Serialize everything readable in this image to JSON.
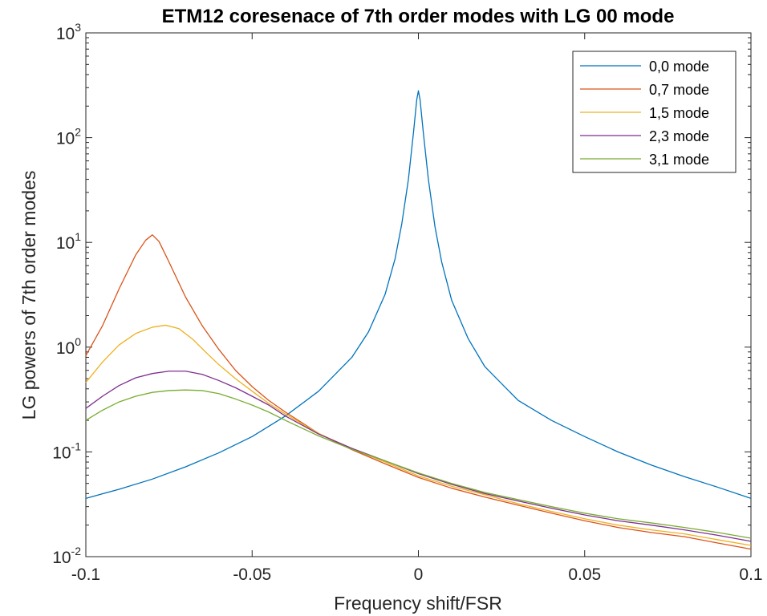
{
  "chart_data": {
    "type": "line",
    "title": "ETM12 coresenace of 7th order modes with LG 00 mode",
    "xlabel": "Frequency shift/FSR",
    "ylabel": "LG powers of 7th order modes",
    "xlim": [
      -0.1,
      0.1
    ],
    "ylim": [
      0.01,
      1000
    ],
    "yscale": "log",
    "grid": false,
    "legend_position": "top-right",
    "x_ticks": [
      -0.1,
      -0.05,
      0,
      0.05,
      0.1
    ],
    "x_tick_labels": [
      "-0.1",
      "-0.05",
      "0",
      "0.05",
      "0.1"
    ],
    "y_ticks": [
      0.01,
      0.1,
      1,
      10,
      100,
      1000
    ],
    "y_tick_labels": [
      {
        "base": "10",
        "exp": "-2"
      },
      {
        "base": "10",
        "exp": "-1"
      },
      {
        "base": "10",
        "exp": "0"
      },
      {
        "base": "10",
        "exp": "1"
      },
      {
        "base": "10",
        "exp": "2"
      },
      {
        "base": "10",
        "exp": "3"
      }
    ],
    "series": [
      {
        "name": "0,0 mode",
        "color": "#0072BD",
        "points": [
          [
            -0.1,
            0.036
          ],
          [
            -0.09,
            0.044
          ],
          [
            -0.08,
            0.055
          ],
          [
            -0.07,
            0.072
          ],
          [
            -0.06,
            0.098
          ],
          [
            -0.05,
            0.14
          ],
          [
            -0.04,
            0.22
          ],
          [
            -0.03,
            0.38
          ],
          [
            -0.02,
            0.8
          ],
          [
            -0.015,
            1.4
          ],
          [
            -0.01,
            3.2
          ],
          [
            -0.007,
            7.0
          ],
          [
            -0.005,
            15
          ],
          [
            -0.003,
            40
          ],
          [
            -0.0015,
            110
          ],
          [
            -0.0005,
            230
          ],
          [
            0,
            280
          ],
          [
            0.0005,
            230
          ],
          [
            0.0015,
            110
          ],
          [
            0.003,
            40
          ],
          [
            0.005,
            14
          ],
          [
            0.007,
            6.5
          ],
          [
            0.01,
            2.8
          ],
          [
            0.015,
            1.2
          ],
          [
            0.02,
            0.65
          ],
          [
            0.03,
            0.31
          ],
          [
            0.04,
            0.2
          ],
          [
            0.05,
            0.14
          ],
          [
            0.06,
            0.1
          ],
          [
            0.07,
            0.075
          ],
          [
            0.08,
            0.058
          ],
          [
            0.09,
            0.046
          ],
          [
            0.1,
            0.036
          ]
        ]
      },
      {
        "name": "0,7 mode",
        "color": "#D95319",
        "points": [
          [
            -0.1,
            0.83
          ],
          [
            -0.095,
            1.6
          ],
          [
            -0.09,
            3.6
          ],
          [
            -0.085,
            7.6
          ],
          [
            -0.082,
            10.5
          ],
          [
            -0.08,
            11.8
          ],
          [
            -0.078,
            10.2
          ],
          [
            -0.075,
            6.5
          ],
          [
            -0.07,
            3.0
          ],
          [
            -0.065,
            1.6
          ],
          [
            -0.06,
            0.95
          ],
          [
            -0.055,
            0.6
          ],
          [
            -0.05,
            0.42
          ],
          [
            -0.045,
            0.31
          ],
          [
            -0.04,
            0.24
          ],
          [
            -0.03,
            0.15
          ],
          [
            -0.02,
            0.105
          ],
          [
            -0.01,
            0.077
          ],
          [
            0,
            0.057
          ],
          [
            0.01,
            0.045
          ],
          [
            0.02,
            0.037
          ],
          [
            0.03,
            0.031
          ],
          [
            0.04,
            0.026
          ],
          [
            0.05,
            0.022
          ],
          [
            0.06,
            0.019
          ],
          [
            0.07,
            0.017
          ],
          [
            0.08,
            0.0155
          ],
          [
            0.09,
            0.0135
          ],
          [
            0.1,
            0.0118
          ]
        ]
      },
      {
        "name": "1,5 mode",
        "color": "#EDB120",
        "points": [
          [
            -0.1,
            0.46
          ],
          [
            -0.095,
            0.72
          ],
          [
            -0.09,
            1.05
          ],
          [
            -0.085,
            1.35
          ],
          [
            -0.08,
            1.55
          ],
          [
            -0.076,
            1.62
          ],
          [
            -0.072,
            1.5
          ],
          [
            -0.068,
            1.2
          ],
          [
            -0.064,
            0.9
          ],
          [
            -0.06,
            0.68
          ],
          [
            -0.055,
            0.5
          ],
          [
            -0.05,
            0.38
          ],
          [
            -0.045,
            0.29
          ],
          [
            -0.04,
            0.23
          ],
          [
            -0.03,
            0.15
          ],
          [
            -0.02,
            0.107
          ],
          [
            -0.01,
            0.08
          ],
          [
            0,
            0.059
          ],
          [
            0.01,
            0.047
          ],
          [
            0.02,
            0.039
          ],
          [
            0.03,
            0.032
          ],
          [
            0.04,
            0.027
          ],
          [
            0.05,
            0.023
          ],
          [
            0.06,
            0.02
          ],
          [
            0.07,
            0.018
          ],
          [
            0.08,
            0.0165
          ],
          [
            0.09,
            0.0145
          ],
          [
            0.1,
            0.0128
          ]
        ]
      },
      {
        "name": "2,3 mode",
        "color": "#7E2F8E",
        "points": [
          [
            -0.1,
            0.26
          ],
          [
            -0.095,
            0.34
          ],
          [
            -0.09,
            0.43
          ],
          [
            -0.085,
            0.51
          ],
          [
            -0.08,
            0.56
          ],
          [
            -0.075,
            0.59
          ],
          [
            -0.07,
            0.59
          ],
          [
            -0.065,
            0.55
          ],
          [
            -0.06,
            0.48
          ],
          [
            -0.055,
            0.41
          ],
          [
            -0.05,
            0.34
          ],
          [
            -0.045,
            0.28
          ],
          [
            -0.04,
            0.22
          ],
          [
            -0.03,
            0.148
          ],
          [
            -0.02,
            0.108
          ],
          [
            -0.01,
            0.082
          ],
          [
            0,
            0.062
          ],
          [
            0.01,
            0.049
          ],
          [
            0.02,
            0.04
          ],
          [
            0.03,
            0.034
          ],
          [
            0.04,
            0.029
          ],
          [
            0.05,
            0.025
          ],
          [
            0.06,
            0.022
          ],
          [
            0.07,
            0.02
          ],
          [
            0.08,
            0.018
          ],
          [
            0.09,
            0.016
          ],
          [
            0.1,
            0.014
          ]
        ]
      },
      {
        "name": "3,1 mode",
        "color": "#77AC30",
        "points": [
          [
            -0.1,
            0.2
          ],
          [
            -0.095,
            0.25
          ],
          [
            -0.09,
            0.3
          ],
          [
            -0.085,
            0.34
          ],
          [
            -0.08,
            0.37
          ],
          [
            -0.075,
            0.385
          ],
          [
            -0.07,
            0.39
          ],
          [
            -0.065,
            0.385
          ],
          [
            -0.06,
            0.36
          ],
          [
            -0.055,
            0.32
          ],
          [
            -0.05,
            0.28
          ],
          [
            -0.045,
            0.24
          ],
          [
            -0.04,
            0.2
          ],
          [
            -0.03,
            0.142
          ],
          [
            -0.02,
            0.106
          ],
          [
            -0.01,
            0.082
          ],
          [
            0,
            0.063
          ],
          [
            0.01,
            0.05
          ],
          [
            0.02,
            0.041
          ],
          [
            0.03,
            0.035
          ],
          [
            0.04,
            0.03
          ],
          [
            0.05,
            0.026
          ],
          [
            0.06,
            0.023
          ],
          [
            0.07,
            0.021
          ],
          [
            0.08,
            0.019
          ],
          [
            0.09,
            0.017
          ],
          [
            0.1,
            0.015
          ]
        ]
      }
    ]
  }
}
